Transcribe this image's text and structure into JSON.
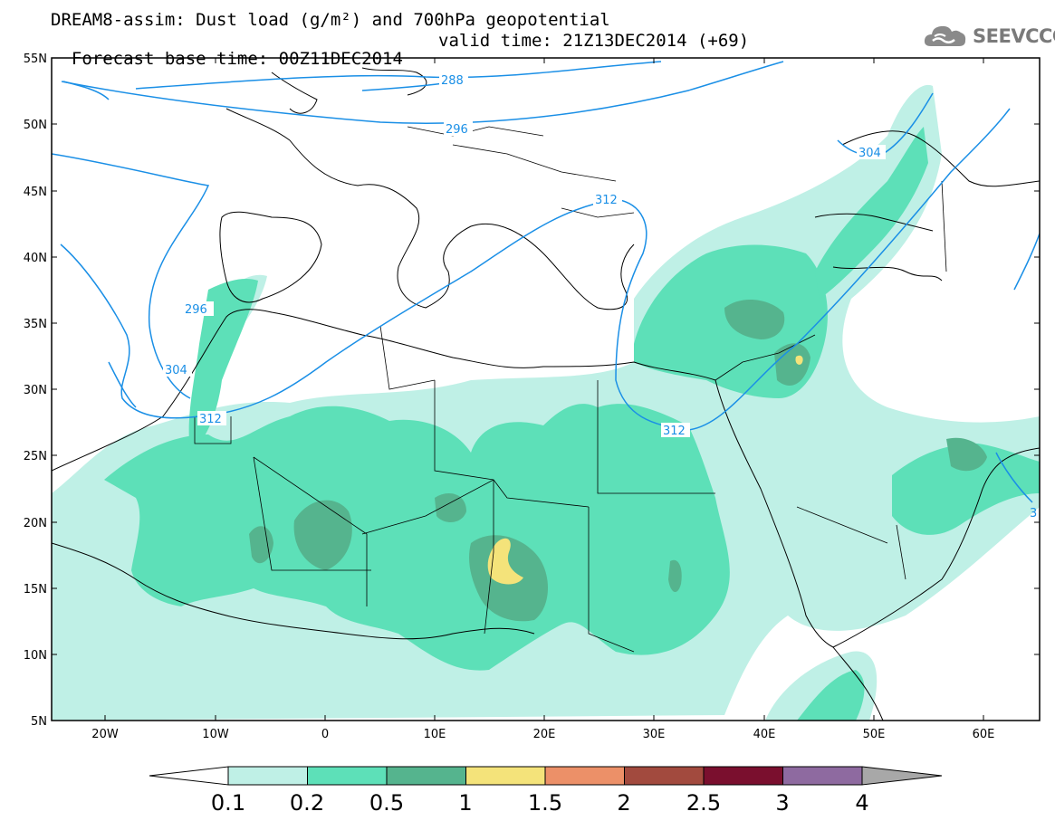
{
  "title": {
    "line1": "DREAM8-assim: Dust load (g/m²) and 700hPa geopotential",
    "line2_base": "Forecast base time: 00Z11DEC2014",
    "line2_valid": "valid time: 21Z13DEC2014 (+69)"
  },
  "logo": {
    "text": "SEEVCCC",
    "icon": "cloud-icon"
  },
  "map": {
    "lon_range": [
      -25,
      65
    ],
    "lat_range": [
      5,
      55
    ],
    "lat_ticks": [
      "5N",
      "10N",
      "15N",
      "20N",
      "25N",
      "30N",
      "35N",
      "40N",
      "45N",
      "50N",
      "55N"
    ],
    "lon_ticks": [
      "20W",
      "10W",
      "0",
      "10E",
      "20E",
      "30E",
      "40E",
      "50E",
      "60E"
    ]
  },
  "contours": {
    "color": "#1a8fe6",
    "labels": [
      "288",
      "296",
      "296",
      "304",
      "304",
      "312",
      "312",
      "312",
      "3"
    ]
  },
  "colorbar": {
    "levels": [
      "0.1",
      "0.2",
      "0.5",
      "1",
      "1.5",
      "2",
      "2.5",
      "3",
      "4"
    ],
    "colors": [
      "#bff0e6",
      "#5de0b8",
      "#55b48e",
      "#f4e37a",
      "#ec9068",
      "#a24a3e",
      "#7a0f2e",
      "#8e6aa0"
    ],
    "under_color": "#ffffff",
    "over_color": "#a8a8a8"
  }
}
